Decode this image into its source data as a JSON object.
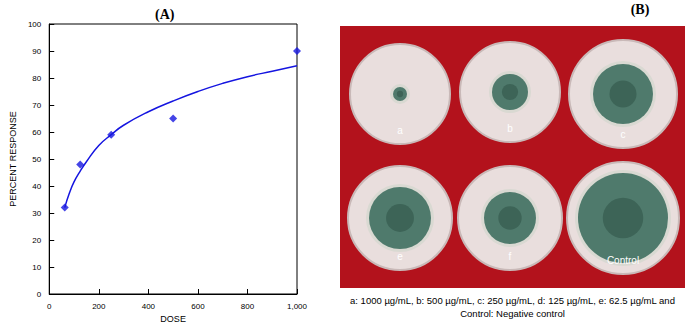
{
  "chart_data": {
    "type": "scatter",
    "title": "(A)",
    "x_label": "DOSE",
    "y_label": "PERCENT RESPONSE",
    "series": [
      {
        "type": "scatter",
        "marker": "diamond",
        "color": "#1515e0",
        "x": [
          62.5,
          125,
          250,
          500,
          1000
        ],
        "values": [
          32,
          48,
          59,
          65,
          90
        ]
      },
      {
        "type": "line",
        "line_style": "solid",
        "color": "#1515e0",
        "x": [
          62.5,
          80,
          100,
          125,
          150,
          200,
          250,
          300,
          400,
          500,
          600,
          700,
          800,
          900,
          1000
        ],
        "values": [
          32,
          37,
          41.5,
          45.5,
          49,
          55,
          59,
          62.5,
          67.5,
          71.5,
          75,
          78,
          80.5,
          82.5,
          84.5
        ]
      }
    ],
    "xlim": [
      0,
      1000
    ],
    "xticks": [
      0,
      200,
      400,
      600,
      800,
      1000
    ],
    "ylim": [
      0,
      100
    ],
    "yticks": [
      0,
      10,
      20,
      30,
      40,
      50,
      60,
      70,
      80,
      90,
      100
    ],
    "grid": false
  },
  "photo": {
    "label": "(B)",
    "dish_labels": [
      "a",
      "b",
      "c",
      "e",
      "f",
      "Control"
    ],
    "caption": [
      "a: 1000 µg/mL, b: 500 µg/mL, c: 250 µg/mL, d: 125 µg/mL, e: 62.5 µg/mL and",
      "Control: Negative control"
    ]
  }
}
